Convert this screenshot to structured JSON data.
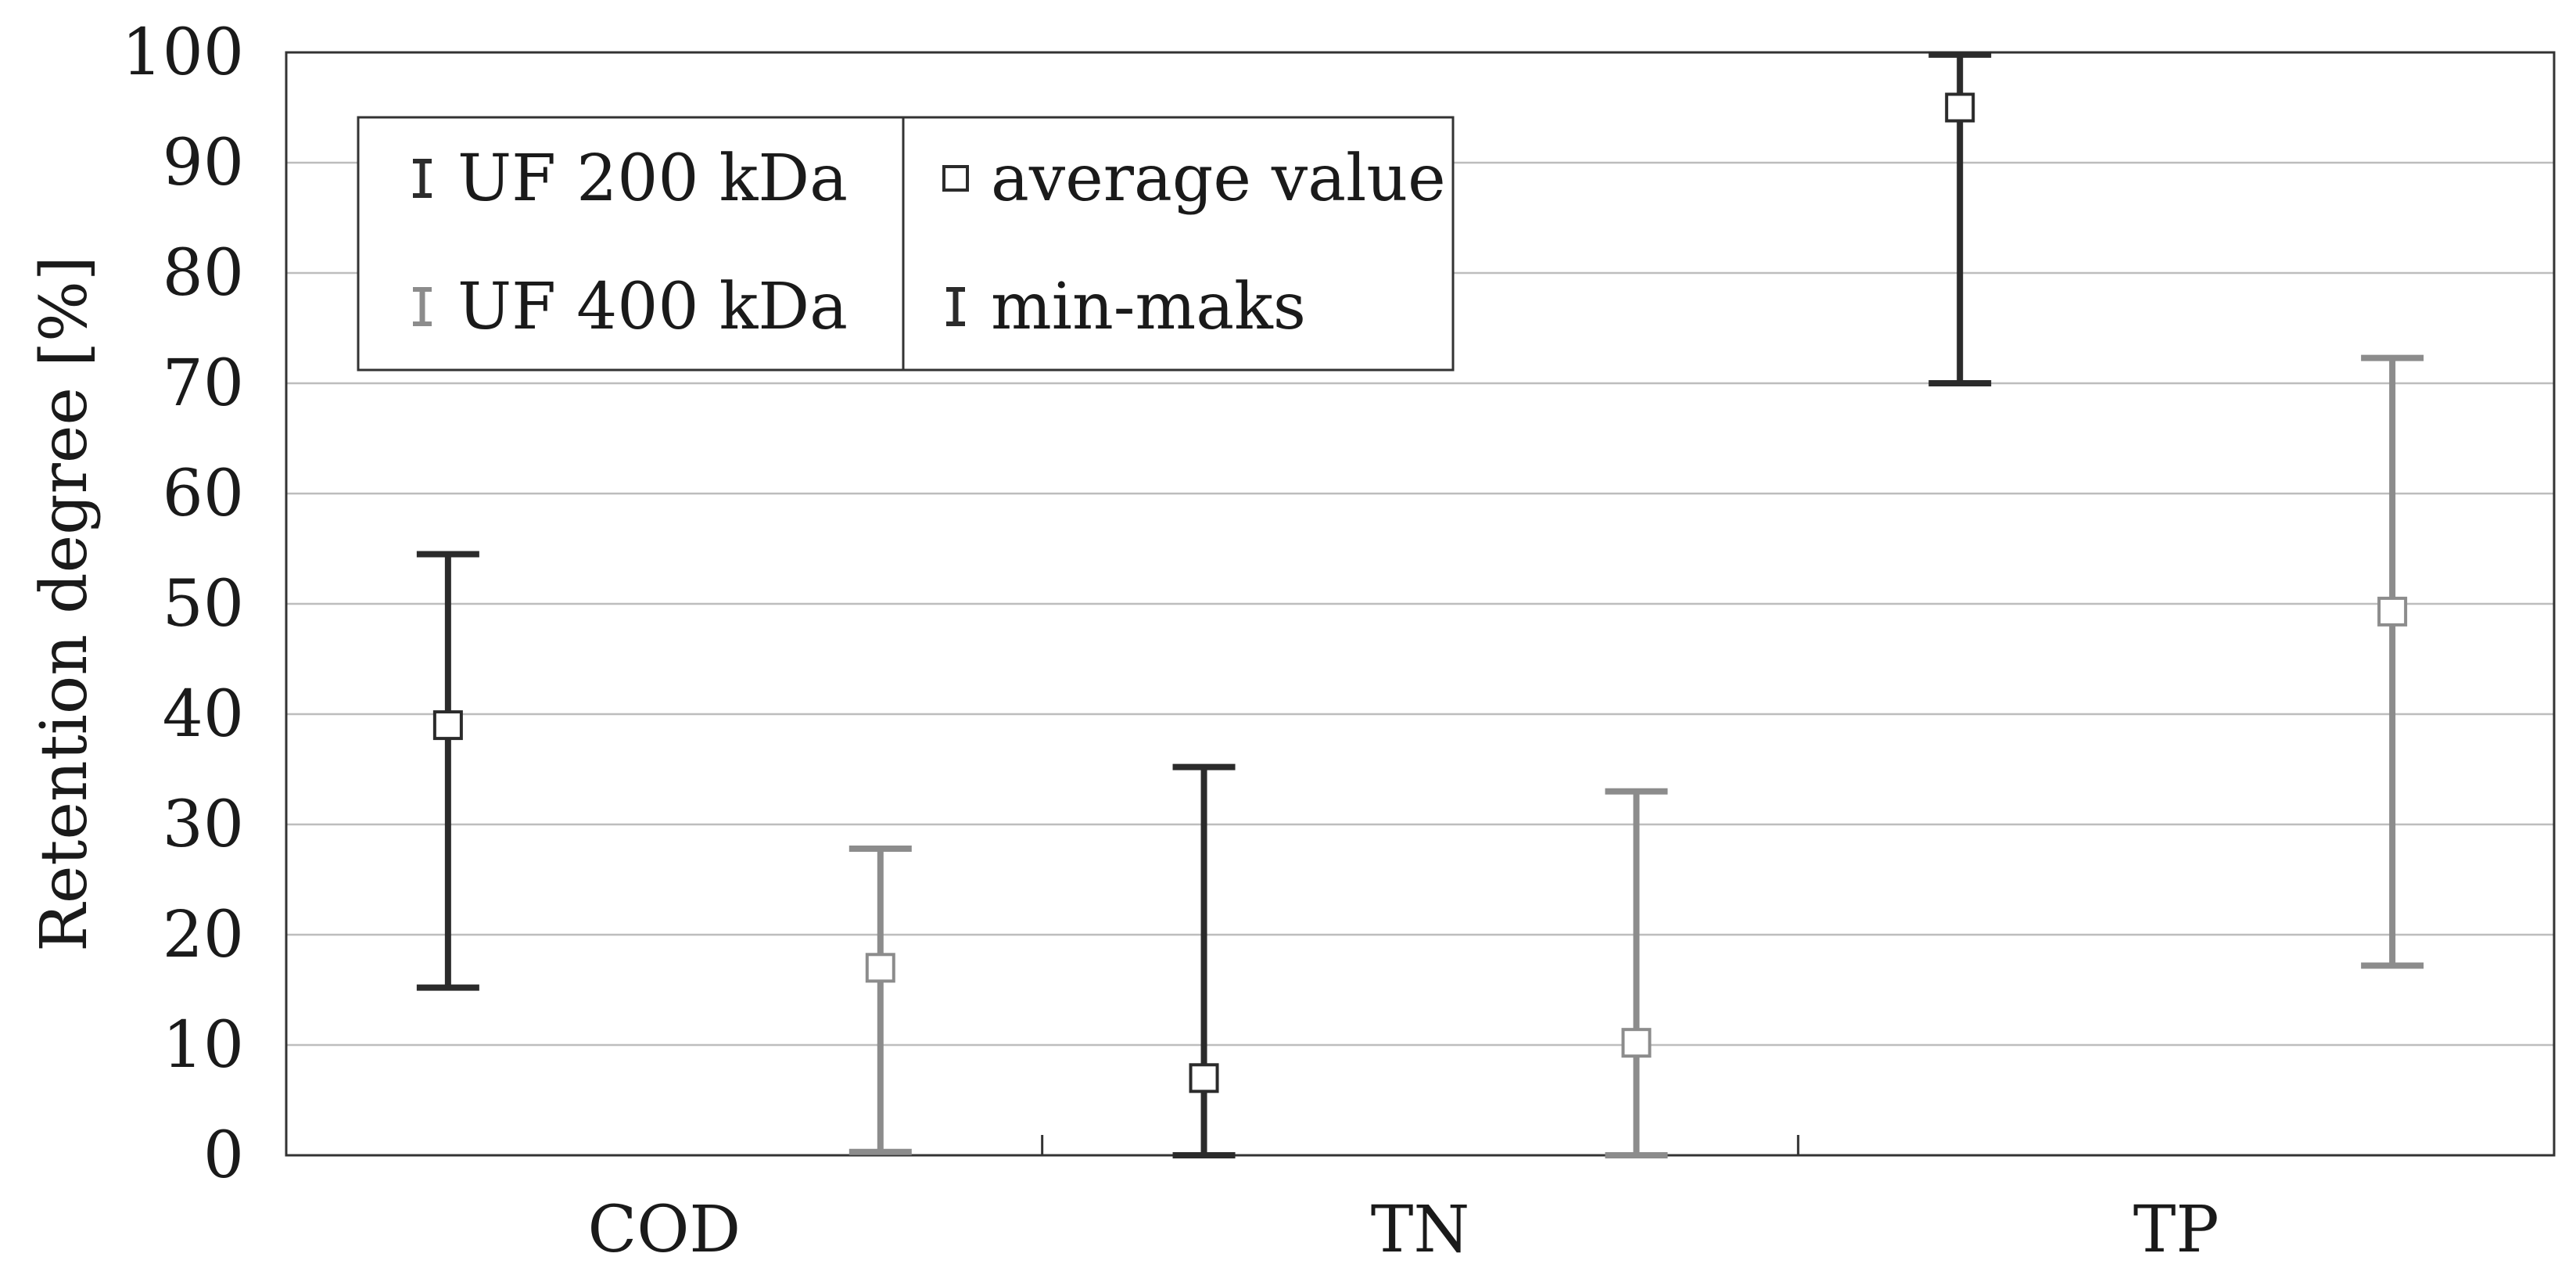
{
  "chart_data": {
    "type": "errorbar",
    "title": "",
    "xlabel": "",
    "ylabel": "Retention degree [%]",
    "ylim": [
      0,
      100
    ],
    "yticks": [
      0,
      10,
      20,
      30,
      40,
      50,
      60,
      70,
      80,
      90,
      100
    ],
    "grid": true,
    "categories": [
      "COD",
      "TN",
      "TP"
    ],
    "series": [
      {
        "name": "UF 200 kDa",
        "color": "#2b2b2b",
        "average": [
          39,
          7,
          95
        ],
        "min": [
          15.2,
          0,
          70
        ],
        "max": [
          54.5,
          35.2,
          99.8
        ]
      },
      {
        "name": "UF 400 kDa",
        "color": "#8c8c8c",
        "average": [
          17,
          10.2,
          49.3
        ],
        "min": [
          0.3,
          0,
          17.2
        ],
        "max": [
          27.8,
          33,
          72.3
        ]
      }
    ],
    "legend": {
      "position": "top-left",
      "entries": [
        {
          "label": "UF 200 kDa",
          "symbol": "errorbar",
          "color": "#2b2b2b"
        },
        {
          "label": "average value",
          "symbol": "square",
          "color": "#2b2b2b"
        },
        {
          "label": "UF 400 kDa",
          "symbol": "errorbar",
          "color": "#8c8c8c"
        },
        {
          "label": "min-maks",
          "symbol": "errorbar",
          "color": "#2b2b2b"
        }
      ]
    }
  }
}
